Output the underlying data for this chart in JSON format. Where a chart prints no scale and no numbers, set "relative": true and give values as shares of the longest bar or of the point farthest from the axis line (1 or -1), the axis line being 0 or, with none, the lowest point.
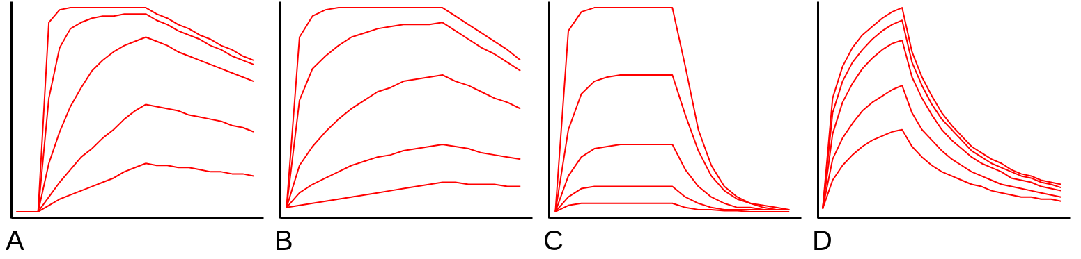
{
  "chart_data": [
    {
      "type": "line",
      "title": "A",
      "relative": true,
      "tick_labels": false,
      "categories": [
        null,
        null,
        null,
        null,
        null,
        null,
        null,
        null,
        null,
        null,
        null,
        null,
        null,
        null,
        null,
        null,
        null,
        null,
        null,
        null,
        null,
        null,
        null
      ],
      "series": [
        {
          "color": "#ff0000",
          "values": [
            0.03,
            0.03,
            0.03,
            0.93,
            0.99,
            1.0,
            1.0,
            1.0,
            1.0,
            1.0,
            1.0,
            1.0,
            1.0,
            0.97,
            0.95,
            0.92,
            0.9,
            0.87,
            0.85,
            0.82,
            0.8,
            0.77,
            0.75
          ]
        },
        {
          "color": "#ff0000",
          "values": [
            0.03,
            0.03,
            0.03,
            0.57,
            0.81,
            0.9,
            0.93,
            0.95,
            0.96,
            0.96,
            0.97,
            0.97,
            0.97,
            0.94,
            0.92,
            0.89,
            0.87,
            0.85,
            0.82,
            0.8,
            0.77,
            0.75,
            0.73
          ]
        },
        {
          "color": "#ff0000",
          "values": [
            0.03,
            0.03,
            0.03,
            0.26,
            0.41,
            0.53,
            0.62,
            0.7,
            0.75,
            0.79,
            0.82,
            0.84,
            0.86,
            0.84,
            0.82,
            0.79,
            0.77,
            0.75,
            0.73,
            0.71,
            0.69,
            0.67,
            0.65
          ]
        },
        {
          "color": "#ff0000",
          "values": [
            0.03,
            0.03,
            0.03,
            0.1,
            0.17,
            0.23,
            0.29,
            0.33,
            0.38,
            0.42,
            0.47,
            0.51,
            0.54,
            0.53,
            0.52,
            0.51,
            0.49,
            0.48,
            0.47,
            0.46,
            0.44,
            0.43,
            0.41
          ]
        },
        {
          "color": "#ff0000",
          "values": [
            0.03,
            0.03,
            0.03,
            0.06,
            0.09,
            0.11,
            0.13,
            0.15,
            0.17,
            0.19,
            0.22,
            0.24,
            0.26,
            0.25,
            0.25,
            0.24,
            0.24,
            0.23,
            0.22,
            0.22,
            0.21,
            0.21,
            0.2
          ]
        }
      ]
    },
    {
      "type": "line",
      "title": "B",
      "relative": true,
      "tick_labels": false,
      "categories": [
        null,
        null,
        null,
        null,
        null,
        null,
        null,
        null,
        null,
        null,
        null,
        null,
        null,
        null,
        null,
        null,
        null,
        null,
        null
      ],
      "series": [
        {
          "color": "#ff0000",
          "values": [
            0.05,
            0.86,
            0.96,
            0.99,
            1.0,
            1.0,
            1.0,
            1.0,
            1.0,
            1.0,
            1.0,
            1.0,
            1.0,
            0.96,
            0.92,
            0.88,
            0.84,
            0.8,
            0.75
          ]
        },
        {
          "color": "#ff0000",
          "values": [
            0.05,
            0.56,
            0.71,
            0.77,
            0.82,
            0.86,
            0.88,
            0.9,
            0.91,
            0.92,
            0.92,
            0.92,
            0.93,
            0.89,
            0.85,
            0.81,
            0.78,
            0.74,
            0.7
          ]
        },
        {
          "color": "#ff0000",
          "values": [
            0.05,
            0.25,
            0.34,
            0.41,
            0.47,
            0.52,
            0.56,
            0.6,
            0.62,
            0.65,
            0.66,
            0.67,
            0.68,
            0.65,
            0.63,
            0.6,
            0.57,
            0.55,
            0.52
          ]
        },
        {
          "color": "#ff0000",
          "values": [
            0.05,
            0.12,
            0.16,
            0.19,
            0.22,
            0.25,
            0.27,
            0.29,
            0.3,
            0.32,
            0.33,
            0.34,
            0.35,
            0.34,
            0.33,
            0.31,
            0.3,
            0.29,
            0.28
          ]
        },
        {
          "color": "#ff0000",
          "values": [
            0.05,
            0.06,
            0.07,
            0.08,
            0.09,
            0.1,
            0.11,
            0.12,
            0.13,
            0.14,
            0.15,
            0.16,
            0.17,
            0.17,
            0.16,
            0.16,
            0.16,
            0.15,
            0.15
          ]
        }
      ]
    },
    {
      "type": "line",
      "title": "C",
      "relative": true,
      "tick_labels": false,
      "categories": [
        null,
        null,
        null,
        null,
        null,
        null,
        null,
        null,
        null,
        null,
        null,
        null,
        null,
        null,
        null,
        null,
        null,
        null,
        null
      ],
      "series": [
        {
          "color": "#ff0000",
          "values": [
            0.03,
            0.89,
            0.98,
            1.0,
            1.0,
            1.0,
            1.0,
            1.0,
            1.0,
            1.0,
            0.72,
            0.42,
            0.25,
            0.15,
            0.1,
            0.07,
            0.06,
            0.05,
            0.04
          ]
        },
        {
          "color": "#ff0000",
          "values": [
            0.03,
            0.42,
            0.59,
            0.65,
            0.67,
            0.68,
            0.68,
            0.68,
            0.68,
            0.68,
            0.49,
            0.32,
            0.2,
            0.13,
            0.09,
            0.07,
            0.05,
            0.04,
            0.04
          ]
        },
        {
          "color": "#ff0000",
          "values": [
            0.03,
            0.2,
            0.29,
            0.33,
            0.34,
            0.35,
            0.35,
            0.35,
            0.35,
            0.35,
            0.23,
            0.15,
            0.1,
            0.07,
            0.05,
            0.05,
            0.04,
            0.04,
            0.04
          ]
        },
        {
          "color": "#ff0000",
          "values": [
            0.03,
            0.1,
            0.14,
            0.15,
            0.15,
            0.15,
            0.15,
            0.15,
            0.15,
            0.15,
            0.1,
            0.07,
            0.05,
            0.04,
            0.04,
            0.04,
            0.04,
            0.04,
            0.04
          ]
        },
        {
          "color": "#ff0000",
          "values": [
            0.03,
            0.06,
            0.07,
            0.07,
            0.07,
            0.07,
            0.07,
            0.07,
            0.07,
            0.07,
            0.05,
            0.04,
            0.04,
            0.035,
            0.035,
            0.03,
            0.03,
            0.03,
            0.03
          ]
        }
      ]
    },
    {
      "type": "line",
      "title": "D",
      "relative": true,
      "tick_labels": false,
      "categories": [
        null,
        null,
        null,
        null,
        null,
        null,
        null,
        null,
        null,
        null,
        null,
        null,
        null,
        null,
        null,
        null,
        null,
        null,
        null,
        null,
        null,
        null,
        null,
        null,
        null
      ],
      "series": [
        {
          "color": "#ff0000",
          "values": [
            0.045,
            0.57,
            0.72,
            0.81,
            0.87,
            0.91,
            0.95,
            0.98,
            1.0,
            0.79,
            0.67,
            0.58,
            0.5,
            0.44,
            0.39,
            0.34,
            0.31,
            0.28,
            0.26,
            0.23,
            0.21,
            0.2,
            0.18,
            0.17,
            0.16
          ]
        },
        {
          "color": "#ff0000",
          "values": [
            0.045,
            0.5,
            0.65,
            0.74,
            0.8,
            0.85,
            0.89,
            0.92,
            0.94,
            0.74,
            0.63,
            0.54,
            0.47,
            0.42,
            0.37,
            0.32,
            0.29,
            0.26,
            0.24,
            0.22,
            0.2,
            0.19,
            0.17,
            0.16,
            0.145
          ]
        },
        {
          "color": "#ff0000",
          "values": [
            0.045,
            0.4,
            0.55,
            0.64,
            0.71,
            0.76,
            0.8,
            0.83,
            0.845,
            0.67,
            0.57,
            0.49,
            0.42,
            0.37,
            0.33,
            0.29,
            0.26,
            0.24,
            0.22,
            0.19,
            0.18,
            0.17,
            0.15,
            0.14,
            0.13
          ]
        },
        {
          "color": "#ff0000",
          "values": [
            0.045,
            0.28,
            0.38,
            0.45,
            0.51,
            0.55,
            0.58,
            0.61,
            0.63,
            0.5,
            0.42,
            0.37,
            0.32,
            0.28,
            0.25,
            0.22,
            0.2,
            0.18,
            0.16,
            0.15,
            0.14,
            0.13,
            0.12,
            0.11,
            0.1
          ]
        },
        {
          "color": "#ff0000",
          "values": [
            0.045,
            0.18,
            0.25,
            0.3,
            0.34,
            0.37,
            0.39,
            0.41,
            0.42,
            0.34,
            0.29,
            0.25,
            0.22,
            0.2,
            0.18,
            0.16,
            0.15,
            0.13,
            0.12,
            0.11,
            0.1,
            0.1,
            0.09,
            0.09,
            0.08
          ]
        }
      ]
    }
  ]
}
